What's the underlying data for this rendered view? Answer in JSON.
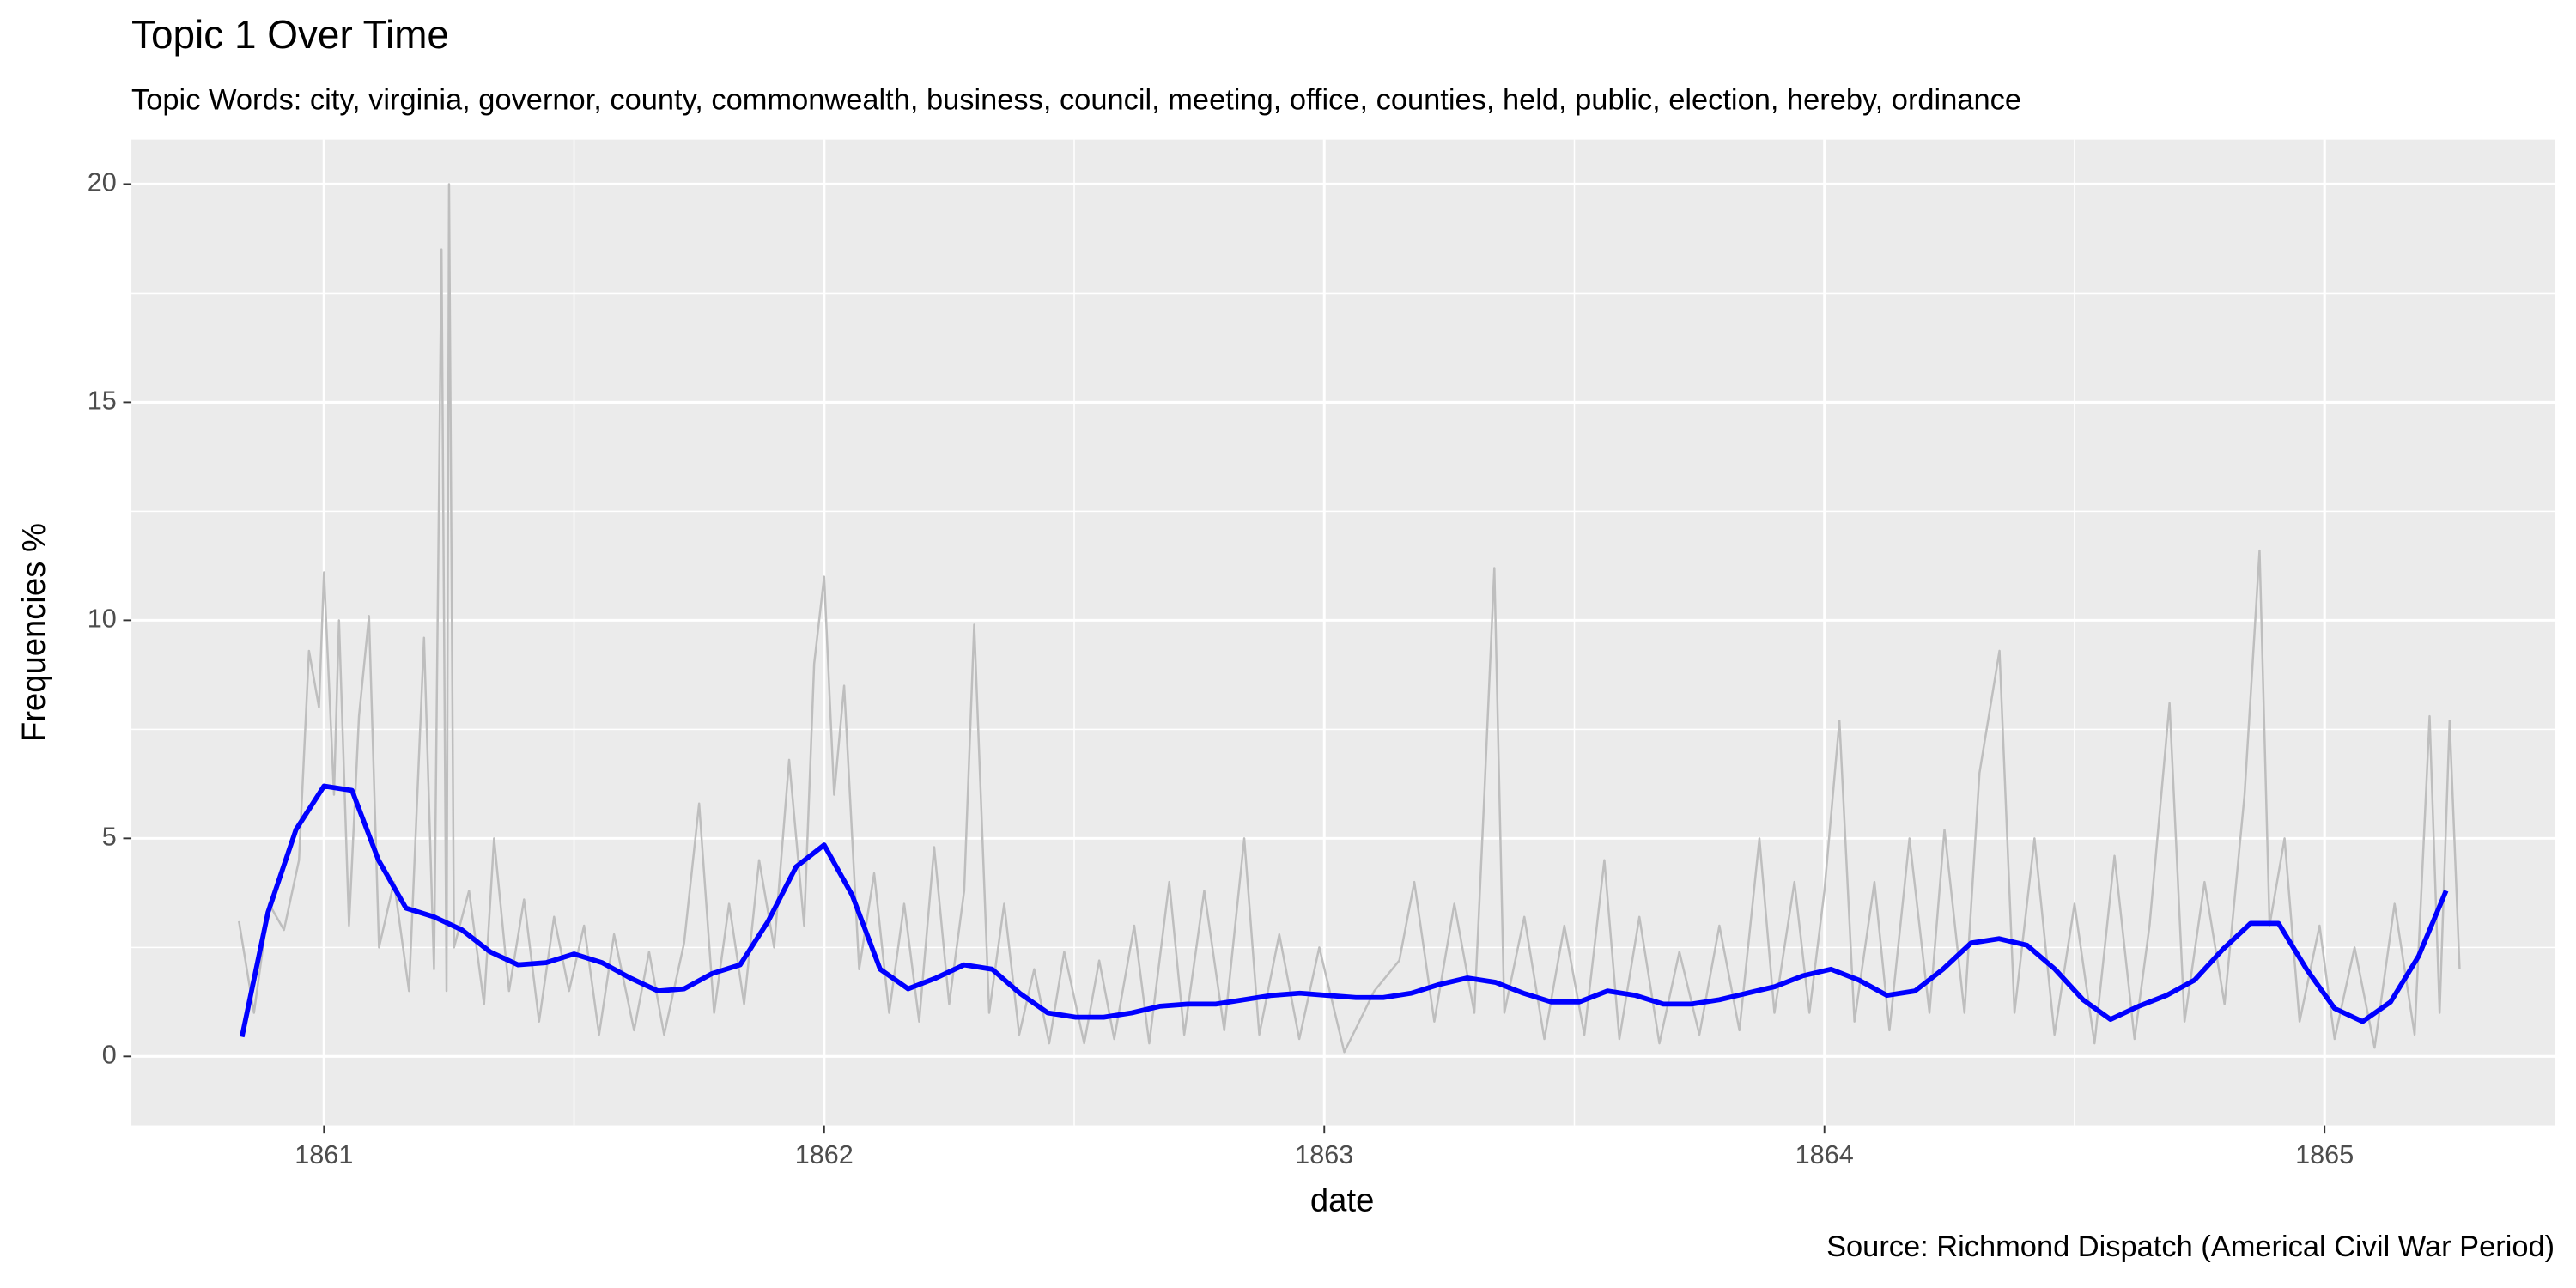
{
  "chart_data": {
    "type": "line",
    "title": "Topic 1 Over Time",
    "subtitle": "Topic Words: city, virginia, governor, county, commonwealth, business, council, meeting, office, counties, held, public, election, hereby, ordinance",
    "x_label": "date",
    "y_label": "Frequencies %",
    "caption": "Source: Richmond Dispatch (Americal Civil War Period)",
    "xlim": [
      1860.615,
      1865.46
    ],
    "ylim": [
      -1.58,
      21.02
    ],
    "xticks": [
      1861,
      1862,
      1863,
      1864,
      1865
    ],
    "yticks": [
      0,
      5,
      10,
      15,
      20
    ],
    "xminorticks": [
      1861.5,
      1862.5,
      1863.5,
      1864.5
    ],
    "yminorticks": [
      2.5,
      7.5,
      12.5,
      17.5
    ],
    "grid": true,
    "series": [
      {
        "color": "#bebebe",
        "x": [
          1860.83,
          1860.86,
          1860.89,
          1860.92,
          1860.95,
          1860.97,
          1860.99,
          1861.0,
          1861.02,
          1861.03,
          1861.05,
          1861.07,
          1861.09,
          1861.11,
          1861.14,
          1861.17,
          1861.2,
          1861.22,
          1861.235,
          1861.245,
          1861.25,
          1861.26,
          1861.29,
          1861.32,
          1861.34,
          1861.37,
          1861.4,
          1861.43,
          1861.46,
          1861.49,
          1861.52,
          1861.55,
          1861.58,
          1861.62,
          1861.65,
          1861.68,
          1861.72,
          1861.75,
          1861.78,
          1861.81,
          1861.84,
          1861.87,
          1861.9,
          1861.93,
          1861.96,
          1861.98,
          1862.0,
          1862.02,
          1862.04,
          1862.07,
          1862.1,
          1862.13,
          1862.16,
          1862.19,
          1862.22,
          1862.25,
          1862.28,
          1862.3,
          1862.33,
          1862.36,
          1862.39,
          1862.42,
          1862.45,
          1862.48,
          1862.52,
          1862.55,
          1862.58,
          1862.62,
          1862.65,
          1862.69,
          1862.72,
          1862.76,
          1862.8,
          1862.84,
          1862.87,
          1862.91,
          1862.95,
          1862.99,
          1863.04,
          1863.1,
          1863.15,
          1863.18,
          1863.22,
          1863.26,
          1863.3,
          1863.32,
          1863.34,
          1863.36,
          1863.4,
          1863.44,
          1863.48,
          1863.52,
          1863.56,
          1863.59,
          1863.63,
          1863.67,
          1863.71,
          1863.75,
          1863.79,
          1863.83,
          1863.87,
          1863.9,
          1863.94,
          1863.97,
          1864.0,
          1864.03,
          1864.06,
          1864.1,
          1864.13,
          1864.17,
          1864.21,
          1864.24,
          1864.28,
          1864.31,
          1864.35,
          1864.38,
          1864.42,
          1864.46,
          1864.5,
          1864.54,
          1864.58,
          1864.62,
          1864.65,
          1864.69,
          1864.72,
          1864.76,
          1864.8,
          1864.84,
          1864.87,
          1864.89,
          1864.92,
          1864.95,
          1864.99,
          1865.02,
          1865.06,
          1865.1,
          1865.14,
          1865.18,
          1865.21,
          1865.23,
          1865.25,
          1865.27
        ],
        "values": [
          3.1,
          1.0,
          3.5,
          2.9,
          4.5,
          9.3,
          8.0,
          11.1,
          6.0,
          10.0,
          3.0,
          7.8,
          10.1,
          2.5,
          4.0,
          1.5,
          9.6,
          2.0,
          18.5,
          1.5,
          20.0,
          2.5,
          3.8,
          1.2,
          5.0,
          1.5,
          3.6,
          0.8,
          3.2,
          1.5,
          3.0,
          0.5,
          2.8,
          0.6,
          2.4,
          0.5,
          2.6,
          5.8,
          1.0,
          3.5,
          1.2,
          4.5,
          2.5,
          6.8,
          3.0,
          9.0,
          11.0,
          6.0,
          8.5,
          2.0,
          4.2,
          1.0,
          3.5,
          0.8,
          4.8,
          1.2,
          3.8,
          9.9,
          1.0,
          3.5,
          0.5,
          2.0,
          0.3,
          2.4,
          0.3,
          2.2,
          0.4,
          3.0,
          0.3,
          4.0,
          0.5,
          3.8,
          0.6,
          5.0,
          0.5,
          2.8,
          0.4,
          2.5,
          0.1,
          1.5,
          2.2,
          4.0,
          0.8,
          3.5,
          1.0,
          6.0,
          11.2,
          1.0,
          3.2,
          0.4,
          3.0,
          0.5,
          4.5,
          0.4,
          3.2,
          0.3,
          2.4,
          0.5,
          3.0,
          0.6,
          5.0,
          1.0,
          4.0,
          1.0,
          3.8,
          7.7,
          0.8,
          4.0,
          0.6,
          5.0,
          1.0,
          5.2,
          1.0,
          6.5,
          9.3,
          1.0,
          5.0,
          0.5,
          3.5,
          0.3,
          4.6,
          0.4,
          3.0,
          8.1,
          0.8,
          4.0,
          1.2,
          6.0,
          11.6,
          3.0,
          5.0,
          0.8,
          3.0,
          0.4,
          2.5,
          0.2,
          3.5,
          0.5,
          7.8,
          1.0,
          7.7,
          2.0
        ]
      },
      {
        "color": "#0000ff",
        "x": [
          1860.836,
          1860.888,
          1860.944,
          1861.0,
          1861.056,
          1861.109,
          1861.164,
          1861.22,
          1861.276,
          1861.332,
          1861.388,
          1861.444,
          1861.5,
          1861.556,
          1861.612,
          1861.668,
          1861.72,
          1861.776,
          1861.832,
          1861.888,
          1861.944,
          1862.0,
          1862.056,
          1862.112,
          1862.168,
          1862.224,
          1862.28,
          1862.336,
          1862.391,
          1862.447,
          1862.503,
          1862.559,
          1862.615,
          1862.671,
          1862.727,
          1862.783,
          1862.839,
          1862.895,
          1862.951,
          1863.007,
          1863.063,
          1863.118,
          1863.174,
          1863.23,
          1863.286,
          1863.342,
          1863.398,
          1863.454,
          1863.51,
          1863.566,
          1863.622,
          1863.678,
          1863.734,
          1863.79,
          1863.845,
          1863.901,
          1863.957,
          1864.013,
          1864.069,
          1864.125,
          1864.181,
          1864.237,
          1864.293,
          1864.349,
          1864.405,
          1864.461,
          1864.517,
          1864.572,
          1864.628,
          1864.684,
          1864.74,
          1864.796,
          1864.852,
          1864.908,
          1864.964,
          1865.02,
          1865.076,
          1865.132,
          1865.188,
          1865.243
        ],
        "values": [
          0.45,
          3.3,
          5.2,
          6.2,
          6.1,
          4.5,
          3.4,
          3.2,
          2.9,
          2.4,
          2.1,
          2.15,
          2.35,
          2.15,
          1.8,
          1.5,
          1.55,
          1.9,
          2.1,
          3.1,
          4.35,
          4.85,
          3.7,
          2.0,
          1.55,
          1.8,
          2.1,
          2.0,
          1.45,
          1.0,
          0.9,
          0.9,
          1.0,
          1.15,
          1.2,
          1.2,
          1.3,
          1.4,
          1.45,
          1.4,
          1.35,
          1.35,
          1.45,
          1.65,
          1.8,
          1.7,
          1.45,
          1.25,
          1.25,
          1.5,
          1.4,
          1.2,
          1.2,
          1.3,
          1.45,
          1.6,
          1.85,
          2.0,
          1.75,
          1.4,
          1.5,
          2.0,
          2.6,
          2.7,
          2.55,
          2.0,
          1.3,
          0.85,
          1.15,
          1.4,
          1.75,
          2.45,
          3.05,
          3.05,
          2.0,
          1.1,
          0.8,
          1.25,
          2.3,
          3.8
        ]
      }
    ]
  }
}
